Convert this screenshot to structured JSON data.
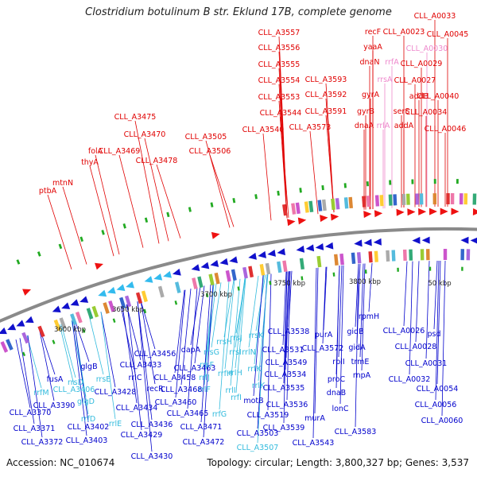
{
  "title": "Clostridium botulinum B str. Eklund 17B, complete genome",
  "footer": {
    "accession": "Accession: NC_010674",
    "topology": "Topology: circular; Length: 3,800,327 bp; Genes: 3,537"
  },
  "colors": {
    "outer_label": "#e00000",
    "outer_label_pink": "#ee88cc",
    "inner_label": "#0000cc",
    "inner_label_cyan": "#33bbdd",
    "backbone": "#888888",
    "forward_arrow": "#ee1111",
    "reverse_arrow": "#1111cc",
    "tick_green": "#22aa22"
  },
  "scale": {
    "ticks": [
      "3600 kbp",
      "3650 kbp",
      "3700 kbp",
      "3750 kbp",
      "3800 kbp",
      "50 kbp"
    ]
  },
  "outer_labels": [
    {
      "t": "CLL_A0033",
      "c": "red"
    },
    {
      "t": "CLL_A0045",
      "c": "red"
    },
    {
      "t": "recF",
      "c": "red"
    },
    {
      "t": "CLL_A0023",
      "c": "red"
    },
    {
      "t": "CLL_A3557",
      "c": "red"
    },
    {
      "t": "yaaA",
      "c": "red"
    },
    {
      "t": "CLL_A0030",
      "c": "pink"
    },
    {
      "t": "CLL_A3556",
      "c": "red"
    },
    {
      "t": "dnaN",
      "c": "red"
    },
    {
      "t": "rrfA",
      "c": "pink"
    },
    {
      "t": "CLL_A0029",
      "c": "red"
    },
    {
      "t": "CLL_A3555",
      "c": "red"
    },
    {
      "t": "CLL_A3593",
      "c": "red"
    },
    {
      "t": "rrsA",
      "c": "pink"
    },
    {
      "t": "CLL_A0027",
      "c": "red"
    },
    {
      "t": "CLL_A3554",
      "c": "red"
    },
    {
      "t": "CLL_A3592",
      "c": "red"
    },
    {
      "t": "gyrA",
      "c": "red"
    },
    {
      "t": "addB",
      "c": "red"
    },
    {
      "t": "CLL_A0040",
      "c": "red"
    },
    {
      "t": "CLL_A3553",
      "c": "red"
    },
    {
      "t": "gyrB",
      "c": "red"
    },
    {
      "t": "serS",
      "c": "red"
    },
    {
      "t": "CLL_A3475",
      "c": "red"
    },
    {
      "t": "CLL_A3544",
      "c": "red"
    },
    {
      "t": "CLL_A3591",
      "c": "red"
    },
    {
      "t": "CLL_A0034",
      "c": "red"
    },
    {
      "t": "dnaA",
      "c": "red"
    },
    {
      "t": "rrlA",
      "c": "pink"
    },
    {
      "t": "addA",
      "c": "red"
    },
    {
      "t": "CLL_A3573",
      "c": "red"
    },
    {
      "t": "CLL_A0046",
      "c": "red"
    },
    {
      "t": "CLL_A3470",
      "c": "red"
    },
    {
      "t": "CLL_A3540",
      "c": "red"
    },
    {
      "t": "CLL_A3505",
      "c": "red"
    },
    {
      "t": "folA",
      "c": "red"
    },
    {
      "t": "CLL_A3469",
      "c": "red"
    },
    {
      "t": "CLL_A3506",
      "c": "red"
    },
    {
      "t": "thyA",
      "c": "red"
    },
    {
      "t": "CLL_A3478",
      "c": "red"
    },
    {
      "t": "mtnN",
      "c": "red"
    },
    {
      "t": "ptbA",
      "c": "red"
    }
  ],
  "inner_labels": [
    {
      "t": "rpmH",
      "c": "blue"
    },
    {
      "t": "CLL_A3538",
      "c": "blue"
    },
    {
      "t": "gidB",
      "c": "blue"
    },
    {
      "t": "CLL_A0026",
      "c": "blue"
    },
    {
      "t": "purA",
      "c": "blue"
    },
    {
      "t": "psd",
      "c": "blue"
    },
    {
      "t": "rrsK",
      "c": "cyan"
    },
    {
      "t": "CLL_A3531",
      "c": "blue"
    },
    {
      "t": "gidA",
      "c": "blue"
    },
    {
      "t": "CLL_A0028",
      "c": "blue"
    },
    {
      "t": "dapA",
      "c": "blue"
    },
    {
      "t": "rrsH",
      "c": "cyan"
    },
    {
      "t": "rrsJ",
      "c": "cyan"
    },
    {
      "t": "CLL_A3572",
      "c": "blue"
    },
    {
      "t": "CLL_A3456",
      "c": "blue"
    },
    {
      "t": "rrsG",
      "c": "cyan"
    },
    {
      "t": "rrsI",
      "c": "cyan"
    },
    {
      "t": "rrlN",
      "c": "cyan"
    },
    {
      "t": "CLL_A3549",
      "c": "blue"
    },
    {
      "t": "rplI",
      "c": "blue"
    },
    {
      "t": "trmE",
      "c": "blue"
    },
    {
      "t": "glgB",
      "c": "blue"
    },
    {
      "t": "CLL_A3433",
      "c": "blue"
    },
    {
      "t": "CLL_A3463",
      "c": "blue"
    },
    {
      "t": "rrsF",
      "c": "cyan"
    },
    {
      "t": "rrlH",
      "c": "cyan"
    },
    {
      "t": "rrfK",
      "c": "cyan"
    },
    {
      "t": "CLL_A3534",
      "c": "blue"
    },
    {
      "t": "rnpA",
      "c": "blue"
    },
    {
      "t": "CLL_A0031",
      "c": "blue"
    },
    {
      "t": "fusA",
      "c": "blue"
    },
    {
      "t": "rrsD",
      "c": "cyan"
    },
    {
      "t": "rrsE",
      "c": "cyan"
    },
    {
      "t": "rrlC",
      "c": "blue"
    },
    {
      "t": "CLL_A3458",
      "c": "blue"
    },
    {
      "t": "rrfJ",
      "c": "cyan"
    },
    {
      "t": "rrfH",
      "c": "cyan"
    },
    {
      "t": "proC",
      "c": "blue"
    },
    {
      "t": "CLL_A0032",
      "c": "blue"
    },
    {
      "t": "rrfM",
      "c": "cyan"
    },
    {
      "t": "CLL_A3406",
      "c": "cyan"
    },
    {
      "t": "recR",
      "c": "blue"
    },
    {
      "t": "rrlF",
      "c": "cyan"
    },
    {
      "t": "rrlI",
      "c": "cyan"
    },
    {
      "t": "rrlK",
      "c": "cyan"
    },
    {
      "t": "CLL_A3535",
      "c": "blue"
    },
    {
      "t": "dnaB",
      "c": "blue"
    },
    {
      "t": "CLL_A0054",
      "c": "blue"
    },
    {
      "t": "CLL_A3428",
      "c": "blue"
    },
    {
      "t": "CLL_A3468",
      "c": "blue"
    },
    {
      "t": "rrfI",
      "c": "cyan"
    },
    {
      "t": "CLL_A3390",
      "c": "blue"
    },
    {
      "t": "glgD",
      "c": "cyan"
    },
    {
      "t": "CLL_A3460",
      "c": "blue"
    },
    {
      "t": "motB",
      "c": "blue"
    },
    {
      "t": "CLL_A3536",
      "c": "blue"
    },
    {
      "t": "lonC",
      "c": "blue"
    },
    {
      "t": "CLL_A0056",
      "c": "blue"
    },
    {
      "t": "CLL_A3370",
      "c": "blue"
    },
    {
      "t": "rrfD",
      "c": "cyan"
    },
    {
      "t": "CLL_A3434",
      "c": "blue"
    },
    {
      "t": "rrfG",
      "c": "cyan"
    },
    {
      "t": "CLL_A3465",
      "c": "blue"
    },
    {
      "t": "CLL_A3519",
      "c": "blue"
    },
    {
      "t": "murA",
      "c": "blue"
    },
    {
      "t": "CLL_A3402",
      "c": "blue"
    },
    {
      "t": "rrlE",
      "c": "cyan"
    },
    {
      "t": "CLL_A3436",
      "c": "blue"
    },
    {
      "t": "CLL_A0060",
      "c": "blue"
    },
    {
      "t": "CLL_A3371",
      "c": "blue"
    },
    {
      "t": "CLL_A3471",
      "c": "blue"
    },
    {
      "t": "CLL_A3539",
      "c": "blue"
    },
    {
      "t": "CLL_A3583",
      "c": "blue"
    },
    {
      "t": "CLL_A3429",
      "c": "blue"
    },
    {
      "t": "CLL_A3503",
      "c": "blue"
    },
    {
      "t": "CLL_A3543",
      "c": "blue"
    },
    {
      "t": "CLL_A3372",
      "c": "blue"
    },
    {
      "t": "CLL_A3403",
      "c": "blue"
    },
    {
      "t": "CLL_A3472",
      "c": "blue"
    },
    {
      "t": "CLL_A3430",
      "c": "blue"
    },
    {
      "t": "CLL_A3507",
      "c": "cyan"
    }
  ]
}
